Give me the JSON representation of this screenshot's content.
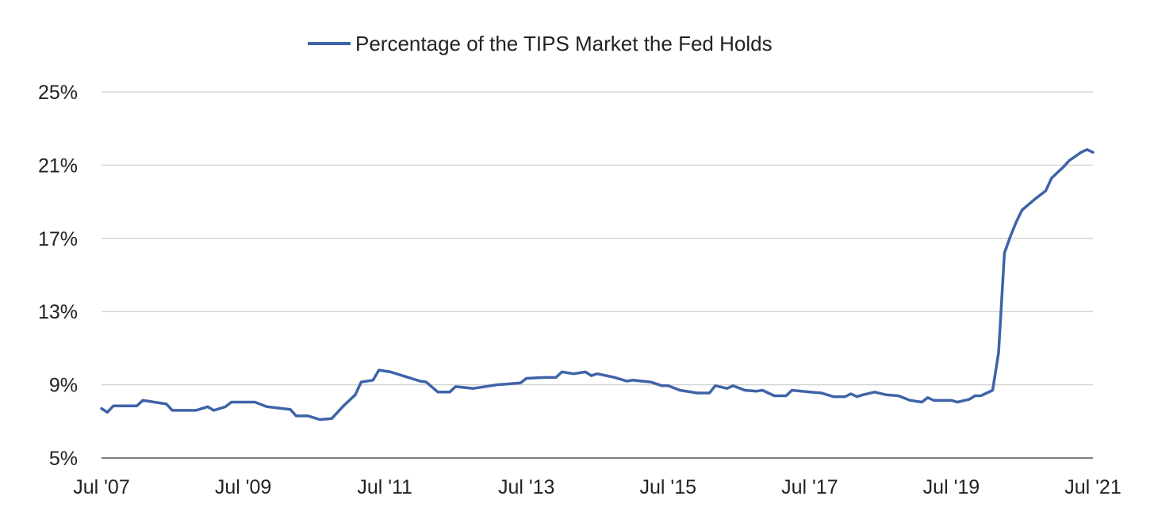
{
  "chart_data": {
    "type": "line",
    "title": "",
    "xlabel": "",
    "ylabel": "",
    "ylim": [
      5,
      25
    ],
    "y_ticks": [
      5,
      9,
      13,
      17,
      21,
      25
    ],
    "y_tick_labels": [
      "5%",
      "9%",
      "13%",
      "17%",
      "21%",
      "25%"
    ],
    "x_ticks": [
      "2007-07",
      "2009-07",
      "2011-07",
      "2013-07",
      "2015-07",
      "2017-07",
      "2019-07",
      "2021-07"
    ],
    "x_tick_labels": [
      "Jul '07",
      "Jul '09",
      "Jul '11",
      "Jul '13",
      "Jul '15",
      "Jul '17",
      "Jul '19",
      "Jul '21"
    ],
    "xlim": [
      "2007-07",
      "2021-07"
    ],
    "grid": "horizontal",
    "legend_position": "top-center",
    "series": [
      {
        "name": "Percentage of the TIPS Market the Fed Holds",
        "color": "#3f63a8",
        "points": [
          [
            "2007-07",
            7.7
          ],
          [
            "2007-08",
            7.5
          ],
          [
            "2007-09",
            7.85
          ],
          [
            "2008-01",
            7.85
          ],
          [
            "2008-02",
            8.15
          ],
          [
            "2008-06",
            7.95
          ],
          [
            "2008-07",
            7.6
          ],
          [
            "2008-11",
            7.6
          ],
          [
            "2009-01",
            7.8
          ],
          [
            "2009-02",
            7.6
          ],
          [
            "2009-04",
            7.8
          ],
          [
            "2009-05",
            8.05
          ],
          [
            "2009-09",
            8.05
          ],
          [
            "2009-11",
            7.8
          ],
          [
            "2010-03",
            7.65
          ],
          [
            "2010-04",
            7.3
          ],
          [
            "2010-06",
            7.3
          ],
          [
            "2010-08",
            7.1
          ],
          [
            "2010-10",
            7.15
          ],
          [
            "2010-12",
            7.85
          ],
          [
            "2011-02",
            8.45
          ],
          [
            "2011-03",
            9.15
          ],
          [
            "2011-05",
            9.25
          ],
          [
            "2011-06",
            9.8
          ],
          [
            "2011-08",
            9.7
          ],
          [
            "2011-11",
            9.4
          ],
          [
            "2012-01",
            9.2
          ],
          [
            "2012-02",
            9.15
          ],
          [
            "2012-04",
            8.6
          ],
          [
            "2012-06",
            8.6
          ],
          [
            "2012-07",
            8.9
          ],
          [
            "2012-10",
            8.8
          ],
          [
            "2013-02",
            9.0
          ],
          [
            "2013-06",
            9.1
          ],
          [
            "2013-07",
            9.35
          ],
          [
            "2013-10",
            9.4
          ],
          [
            "2013-12",
            9.4
          ],
          [
            "2014-01",
            9.7
          ],
          [
            "2014-03",
            9.6
          ],
          [
            "2014-05",
            9.7
          ],
          [
            "2014-06",
            9.5
          ],
          [
            "2014-07",
            9.6
          ],
          [
            "2014-10",
            9.4
          ],
          [
            "2014-12",
            9.2
          ],
          [
            "2015-01",
            9.25
          ],
          [
            "2015-04",
            9.15
          ],
          [
            "2015-06",
            8.95
          ],
          [
            "2015-07",
            8.95
          ],
          [
            "2015-09",
            8.7
          ],
          [
            "2015-12",
            8.55
          ],
          [
            "2016-02",
            8.55
          ],
          [
            "2016-03",
            8.95
          ],
          [
            "2016-05",
            8.8
          ],
          [
            "2016-06",
            8.95
          ],
          [
            "2016-08",
            8.7
          ],
          [
            "2016-10",
            8.65
          ],
          [
            "2016-11",
            8.7
          ],
          [
            "2017-01",
            8.4
          ],
          [
            "2017-03",
            8.4
          ],
          [
            "2017-04",
            8.7
          ],
          [
            "2017-07",
            8.6
          ],
          [
            "2017-09",
            8.55
          ],
          [
            "2017-11",
            8.35
          ],
          [
            "2018-01",
            8.35
          ],
          [
            "2018-02",
            8.5
          ],
          [
            "2018-03",
            8.35
          ],
          [
            "2018-04",
            8.45
          ],
          [
            "2018-06",
            8.6
          ],
          [
            "2018-08",
            8.45
          ],
          [
            "2018-10",
            8.4
          ],
          [
            "2018-12",
            8.15
          ],
          [
            "2019-02",
            8.05
          ],
          [
            "2019-03",
            8.3
          ],
          [
            "2019-04",
            8.15
          ],
          [
            "2019-07",
            8.15
          ],
          [
            "2019-08",
            8.05
          ],
          [
            "2019-10",
            8.2
          ],
          [
            "2019-11",
            8.4
          ],
          [
            "2019-12",
            8.4
          ],
          [
            "2020-02",
            8.7
          ],
          [
            "2020-03",
            10.75
          ],
          [
            "2020-04",
            16.2
          ],
          [
            "2020-05",
            17.1
          ],
          [
            "2020-06",
            17.9
          ],
          [
            "2020-07",
            18.55
          ],
          [
            "2020-09",
            19.1
          ],
          [
            "2020-11",
            19.6
          ],
          [
            "2020-12",
            20.3
          ],
          [
            "2021-02",
            20.9
          ],
          [
            "2021-03",
            21.25
          ],
          [
            "2021-05",
            21.7
          ],
          [
            "2021-06",
            21.85
          ],
          [
            "2021-07",
            21.7
          ]
        ]
      }
    ]
  }
}
